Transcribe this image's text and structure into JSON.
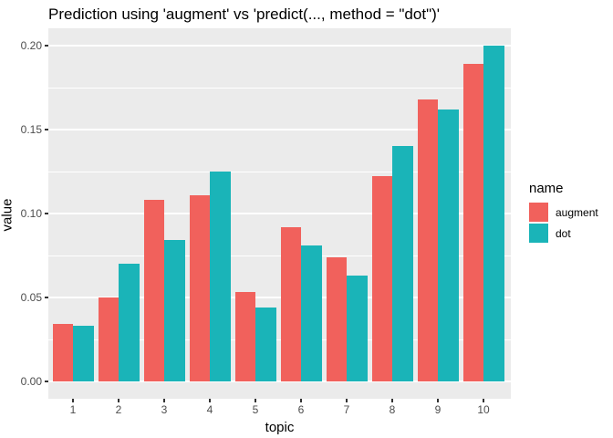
{
  "chart_data": {
    "type": "bar",
    "grouped": true,
    "title": "Prediction using 'augment' vs 'predict(..., method = \"dot\")'",
    "xlabel": "topic",
    "ylabel": "value",
    "categories": [
      "1",
      "2",
      "3",
      "4",
      "5",
      "6",
      "7",
      "8",
      "9",
      "10"
    ],
    "series": [
      {
        "name": "augment",
        "color": "#F1615C",
        "values": [
          0.034,
          0.05,
          0.108,
          0.111,
          0.053,
          0.092,
          0.074,
          0.122,
          0.168,
          0.189
        ]
      },
      {
        "name": "dot",
        "color": "#1AB4B8",
        "values": [
          0.033,
          0.07,
          0.084,
          0.125,
          0.044,
          0.081,
          0.063,
          0.14,
          0.162,
          0.2
        ]
      }
    ],
    "y_ticks": [
      0.0,
      0.05,
      0.1,
      0.15,
      0.2
    ],
    "y_tick_labels": [
      "0.00",
      "0.05",
      "0.10",
      "0.15",
      "0.20"
    ],
    "ylim": [
      0,
      0.21
    ],
    "grid": true,
    "legend": {
      "title": "name",
      "position": "right"
    },
    "colors": {
      "panel_background": "#EBEBEB",
      "gridline": "#FFFFFF",
      "tick_text": "#4D4D4D",
      "tick_mark": "#333333"
    }
  }
}
